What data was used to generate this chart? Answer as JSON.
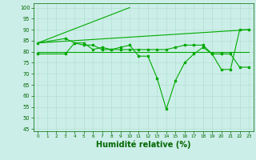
{
  "bg_color": "#cceee8",
  "grid_color": "#aaddcc",
  "line_color": "#00aa00",
  "xlabel": "Humidité relative (%)",
  "xlabel_fontsize": 7,
  "ylabel_ticks": [
    45,
    50,
    55,
    60,
    65,
    70,
    75,
    80,
    85,
    90,
    95,
    100
  ],
  "xlim": [
    -0.5,
    23.5
  ],
  "ylim": [
    44,
    102
  ],
  "xticks": [
    0,
    1,
    2,
    3,
    4,
    5,
    6,
    7,
    8,
    9,
    10,
    11,
    12,
    13,
    14,
    15,
    16,
    17,
    18,
    19,
    20,
    21,
    22,
    23
  ],
  "line_spike": {
    "x": [
      0,
      10
    ],
    "y": [
      84,
      100
    ]
  },
  "line_volatile": {
    "x": [
      0,
      3,
      4,
      5,
      6,
      7,
      8,
      9,
      10,
      11,
      12,
      13,
      14,
      15,
      16,
      17,
      18,
      19,
      20,
      21,
      22,
      23
    ],
    "y": [
      84,
      86,
      84,
      84,
      81,
      82,
      81,
      82,
      83,
      78,
      78,
      68,
      54,
      67,
      75,
      79,
      82,
      79,
      72,
      72,
      90,
      90
    ]
  },
  "line_slow_rise": {
    "x": [
      0,
      23
    ],
    "y": [
      84,
      90
    ]
  },
  "line_flat80": {
    "x": [
      0,
      23
    ],
    "y": [
      80,
      80
    ]
  },
  "line_mid": {
    "x": [
      0,
      3,
      4,
      5,
      6,
      7,
      8,
      9,
      10,
      11,
      12,
      13,
      14,
      15,
      16,
      17,
      18,
      19,
      20,
      21,
      22,
      23
    ],
    "y": [
      79,
      79,
      84,
      83,
      83,
      81,
      81,
      81,
      81,
      81,
      81,
      81,
      81,
      82,
      83,
      83,
      83,
      79,
      79,
      79,
      73,
      73
    ]
  }
}
